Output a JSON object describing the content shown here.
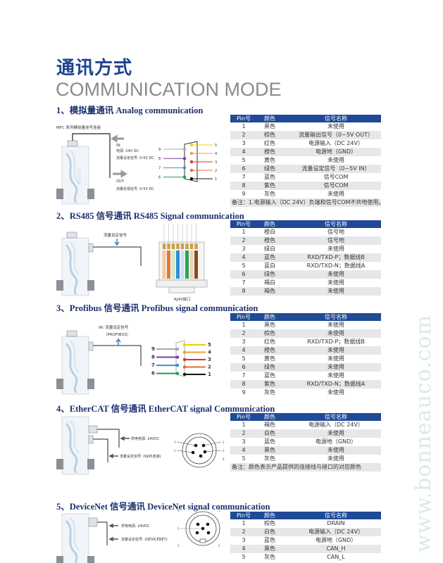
{
  "title_cn": "通讯方式",
  "title_en": "COMMUNICATION MODE",
  "table_headers": {
    "pin": "Pin号",
    "color": "颜色",
    "signal": "信号名称"
  },
  "sections": [
    {
      "heading": "1、模拟量通讯 Analog communication",
      "diagram": {
        "caption": "MFC 系列模拟量信号连接",
        "in_label": "IN:",
        "in_power": "电源: 24V DC",
        "in_setpoint": "流量设定信号: 0-5V DC",
        "out_label": "OUT:",
        "out_feedback": "流量反馈信号: 0-5V DC",
        "pins_left": [
          "9",
          "8",
          "7",
          "6"
        ],
        "pins_right": [
          "5",
          "4",
          "3",
          "2",
          "1"
        ]
      },
      "rows": [
        [
          "1",
          "黑色",
          "未使用"
        ],
        [
          "2",
          "棕色",
          "流量输出信号（0~5V OUT）"
        ],
        [
          "3",
          "红色",
          "电源输入（DC 24V）"
        ],
        [
          "4",
          "橙色",
          "电源地（GND）"
        ],
        [
          "5",
          "黄色",
          "未使用"
        ],
        [
          "6",
          "绿色",
          "流量设定信号（0~5V IN）"
        ],
        [
          "7",
          "蓝色",
          "信号COM"
        ],
        [
          "8",
          "紫色",
          "信号COM"
        ],
        [
          "9",
          "灰色",
          "未使用"
        ]
      ],
      "note": "备注：1.电源输入（DC 24V）负端和信号COM不共地使用。"
    },
    {
      "heading": "2、RS485 信号通讯 RS485 Signal communication",
      "diagram": {
        "setpoint_label": "流量设定信号",
        "connector_label": "RJ45接口"
      },
      "rows": [
        [
          "1",
          "橙白",
          "信号地"
        ],
        [
          "2",
          "橙色",
          "信号地"
        ],
        [
          "3",
          "绿白",
          "未使用"
        ],
        [
          "4",
          "蓝色",
          "RXD/TXD-P；数据线B"
        ],
        [
          "5",
          "蓝白",
          "RXD/TXD-N；数据线A"
        ],
        [
          "6",
          "绿色",
          "未使用"
        ],
        [
          "7",
          "褐白",
          "未使用"
        ],
        [
          "8",
          "褐色",
          "未使用"
        ]
      ]
    },
    {
      "heading": "3、Profibus 信号通讯 Profibus signal communication",
      "diagram": {
        "in_label": "IN: 流量设定信号",
        "protocol_label": "（PROFIBUS）",
        "pins_left": [
          "9",
          "8",
          "7",
          "6"
        ],
        "pins_right": [
          "5",
          "4",
          "3",
          "2",
          "1"
        ]
      },
      "rows": [
        [
          "1",
          "黑色",
          "未使用"
        ],
        [
          "2",
          "棕色",
          "未使用"
        ],
        [
          "3",
          "红色",
          "RXD/TXD-P；数据线B"
        ],
        [
          "4",
          "橙色",
          "未使用"
        ],
        [
          "5",
          "黄色",
          "未使用"
        ],
        [
          "6",
          "绿色",
          "未使用"
        ],
        [
          "7",
          "蓝色",
          "未使用"
        ],
        [
          "8",
          "紫色",
          "RXD/TXD-N；数据线A"
        ],
        [
          "9",
          "灰色",
          "未使用"
        ]
      ]
    },
    {
      "heading": "4、EtherCAT 信号通讯 EtherCAT signal Communication",
      "diagram": {
        "power_label": "供电电源: 24VDC",
        "setpoint_label": "流量设定信号: (RJ45连接)",
        "pins": [
          "1",
          "2",
          "3",
          "4",
          "5"
        ]
      },
      "rows": [
        [
          "1",
          "褐色",
          "电源输入（DC 24V）"
        ],
        [
          "2",
          "白色",
          "未使用"
        ],
        [
          "3",
          "蓝色",
          "电源地（GND）"
        ],
        [
          "4",
          "黑色",
          "未使用"
        ],
        [
          "5",
          "灰色",
          "未使用"
        ]
      ],
      "note": "备注：颜色表示产品提供的连接线与接口的对应颜色"
    },
    {
      "heading": "5、DeviceNet 信号通讯 DeviceNet signal communication",
      "diagram": {
        "power_label": "供电电源: 24VDC",
        "setpoint_label": "流量设定信号: (DEVICENET)",
        "pins": [
          "1",
          "2",
          "3",
          "4",
          "5"
        ]
      },
      "rows": [
        [
          "1",
          "棕色",
          "DRAIN"
        ],
        [
          "2",
          "白色",
          "电源输入（DC 24V）"
        ],
        [
          "3",
          "蓝色",
          "电源地（GND）"
        ],
        [
          "4",
          "黑色",
          "CAN_H"
        ],
        [
          "5",
          "灰色",
          "CAN_L"
        ]
      ]
    }
  ],
  "device_brand": "FELTON",
  "watermark": "www.bonneauco.com",
  "colors": {
    "title_blue": "#1f4390",
    "table_header": "#1f4a96",
    "row_alt": "#e6e7ea",
    "heading_navy": "#1d2f6e"
  }
}
